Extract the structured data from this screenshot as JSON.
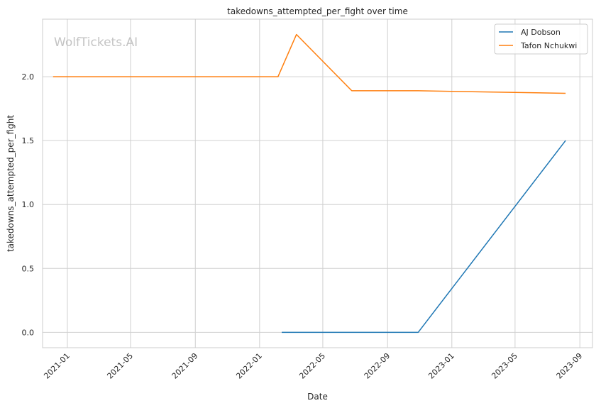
{
  "chart_data": {
    "type": "line",
    "title": "takedowns_attempted_per_fight over time",
    "xlabel": "Date",
    "ylabel": "takedowns_attempted_per_fight",
    "watermark": "WolfTickets.AI",
    "grid": true,
    "legend_position": "top-right",
    "x_tick_labels": [
      "2021-01",
      "2021-05",
      "2021-09",
      "2022-01",
      "2022-05",
      "2022-09",
      "2023-01",
      "2023-05",
      "2023-09"
    ],
    "y_ticks": [
      0.0,
      0.5,
      1.0,
      1.5,
      2.0
    ],
    "y_tick_labels": [
      "0.0",
      "0.5",
      "1.0",
      "1.5",
      "2.0"
    ],
    "xlim": [
      "2020-11-15",
      "2023-09-25"
    ],
    "ylim": [
      -0.12,
      2.45
    ],
    "series": [
      {
        "name": "AJ Dobson",
        "color": "#1f77b4",
        "points": [
          {
            "x": "2022-02-12",
            "y": 0.0
          },
          {
            "x": "2022-10-29",
            "y": 0.0
          },
          {
            "x": "2023-08-05",
            "y": 1.5
          }
        ]
      },
      {
        "name": "Tafon Nchukwi",
        "color": "#ff7f0e",
        "points": [
          {
            "x": "2020-12-05",
            "y": 2.0
          },
          {
            "x": "2022-02-05",
            "y": 2.0
          },
          {
            "x": "2022-03-12",
            "y": 2.33
          },
          {
            "x": "2022-06-25",
            "y": 1.89
          },
          {
            "x": "2022-10-29",
            "y": 1.89
          },
          {
            "x": "2023-08-05",
            "y": 1.87
          }
        ]
      }
    ]
  }
}
